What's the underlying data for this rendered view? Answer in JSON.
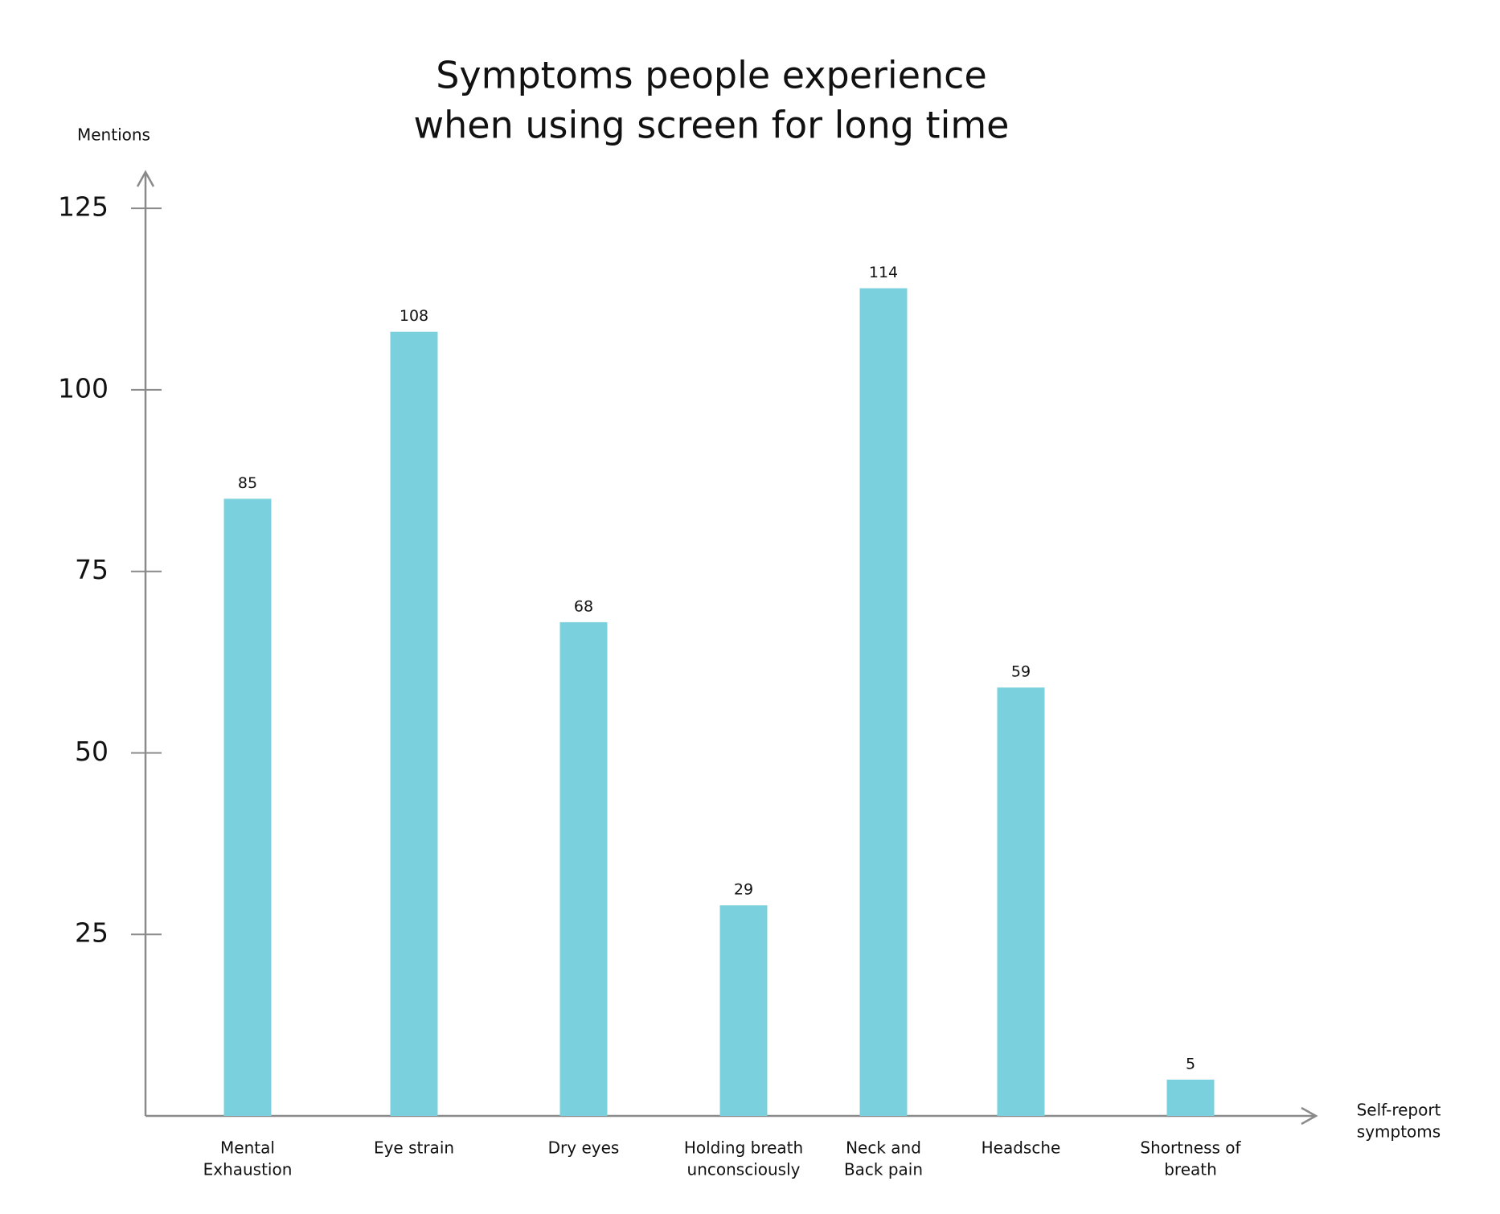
{
  "chart_data": {
    "type": "bar",
    "title": [
      "Symptoms people experience",
      "when using screen for long time"
    ],
    "y_label": "Mentions",
    "x_label": [
      "Self-report",
      "symptoms"
    ],
    "categories": [
      [
        "Mental",
        "Exhaustion"
      ],
      [
        "Eye strain"
      ],
      [
        "Dry eyes"
      ],
      [
        "Holding breath",
        "unconsciously"
      ],
      [
        "Neck and",
        "Back pain"
      ],
      [
        "Headsche"
      ],
      [
        "Shortness of",
        "breath"
      ]
    ],
    "values": [
      85,
      108,
      68,
      29,
      114,
      59,
      5
    ],
    "color": "#7ad0dc",
    "ylim": [
      0,
      130
    ],
    "yticks": [
      25,
      50,
      75,
      100,
      125
    ]
  }
}
